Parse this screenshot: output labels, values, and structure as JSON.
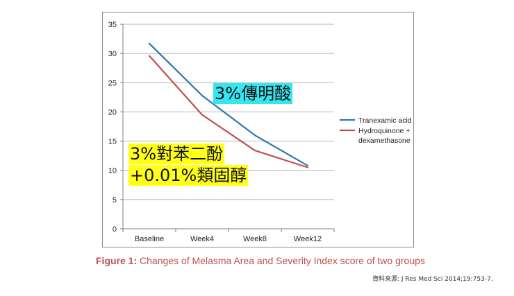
{
  "chart_data": {
    "type": "line",
    "title": "",
    "xlabel": "",
    "ylabel": "",
    "categories": [
      "Baseline",
      "Week4",
      "Week8",
      "Week12"
    ],
    "ylim": [
      0,
      35
    ],
    "yticks": [
      0,
      5,
      10,
      15,
      20,
      25,
      30,
      35
    ],
    "grid": true,
    "legend_position": "right",
    "series": [
      {
        "name": "Tranexamic acid",
        "color": "#2e75b6",
        "values": [
          31.7,
          22.8,
          16.0,
          10.8
        ]
      },
      {
        "name": "Hydroquinone + dexamethasone",
        "legend_lines": [
          "Hydroquinone +",
          "dexamethasone"
        ],
        "color": "#c0504d",
        "values": [
          29.6,
          19.5,
          13.4,
          10.5
        ]
      }
    ]
  },
  "annotations": {
    "tranexamic": "3%傳明酸",
    "hydroquinone_line1": "3%對苯二酚",
    "hydroquinone_line2": "+0.01%類固醇"
  },
  "caption": {
    "label": "Figure 1:",
    "text": " Changes of Melasma Area and Severity Index score of two groups"
  },
  "source": "資料來源:  J Res Med Sci 2014;19:753-7."
}
